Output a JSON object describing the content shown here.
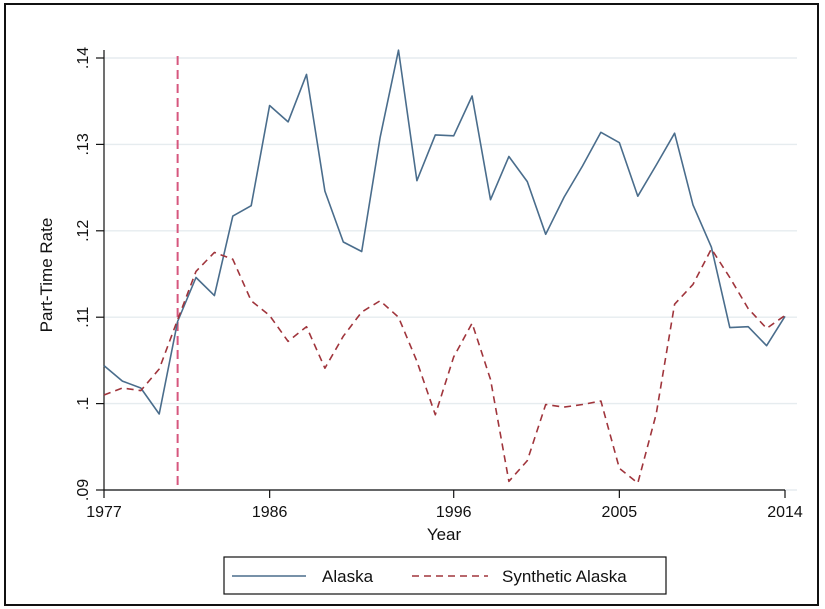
{
  "chart_data": {
    "type": "line",
    "xlabel": "Year",
    "ylabel": "Part-Time Rate",
    "xlim": [
      1977,
      2014
    ],
    "ylim": [
      0.09,
      0.14
    ],
    "xticks": [
      1977,
      1986,
      1996,
      2005,
      2014
    ],
    "xtick_labels": [
      "1977",
      "1986",
      "1996",
      "2005",
      "2014"
    ],
    "yticks": [
      0.09,
      0.1,
      0.11,
      0.12,
      0.13,
      0.14
    ],
    "ytick_labels": [
      ".09",
      ".1",
      ".11",
      ".12",
      ".13",
      ".14"
    ],
    "grid": true,
    "legend_position": "bottom",
    "vline": 1981,
    "vline_color": "#d6577e",
    "x": [
      1977,
      1978,
      1979,
      1980,
      1981,
      1982,
      1983,
      1984,
      1985,
      1986,
      1987,
      1988,
      1989,
      1990,
      1991,
      1992,
      1993,
      1994,
      1995,
      1996,
      1997,
      1998,
      1999,
      2000,
      2001,
      2002,
      2003,
      2004,
      2005,
      2006,
      2007,
      2008,
      2009,
      2010,
      2011,
      2012,
      2013,
      2014
    ],
    "series": [
      {
        "name": "Alaska",
        "color": "#4a6d8c",
        "dash": "solid",
        "values": [
          0.1044,
          0.1026,
          0.1018,
          0.0988,
          0.1095,
          0.1146,
          0.1125,
          0.1217,
          0.1229,
          0.1345,
          0.1326,
          0.1381,
          0.1246,
          0.1187,
          0.1176,
          0.1308,
          0.1409,
          0.1258,
          0.1311,
          0.131,
          0.1356,
          0.1236,
          0.1286,
          0.1257,
          0.1196,
          0.1239,
          0.1275,
          0.1314,
          0.1302,
          0.124,
          0.1276,
          0.1313,
          0.123,
          0.1181,
          0.1088,
          0.1089,
          0.1067,
          0.1101
        ]
      },
      {
        "name": "Synthetic Alaska",
        "color": "#a0353c",
        "dash": "dashed",
        "values": [
          0.101,
          0.1018,
          0.1015,
          0.104,
          0.1097,
          0.1153,
          0.1175,
          0.1167,
          0.1119,
          0.1102,
          0.1072,
          0.1089,
          0.1041,
          0.1078,
          0.1106,
          0.1119,
          0.11,
          0.1049,
          0.0987,
          0.1054,
          0.1093,
          0.1028,
          0.091,
          0.0934,
          0.0999,
          0.0996,
          0.0999,
          0.1003,
          0.0925,
          0.0908,
          0.0988,
          0.1115,
          0.1138,
          0.1179,
          0.1146,
          0.111,
          0.1087,
          0.1102
        ]
      }
    ]
  }
}
